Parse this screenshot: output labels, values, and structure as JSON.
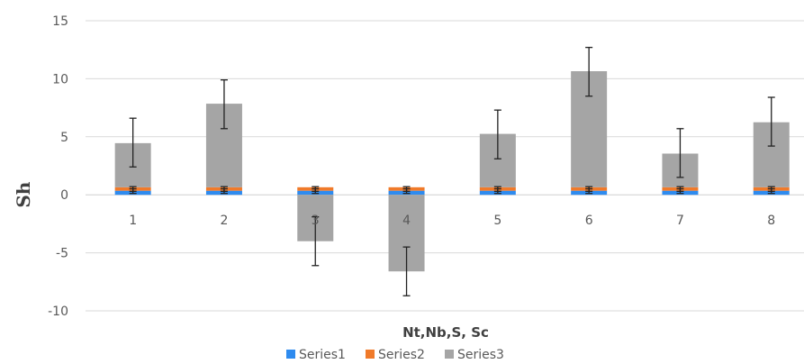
{
  "chart_data": {
    "type": "bar",
    "stacked": true,
    "title": "",
    "xlabel": "Nt,Nb,S, Sc",
    "ylabel": "Sh",
    "categories": [
      "1",
      "2",
      "3",
      "4",
      "5",
      "6",
      "7",
      "8"
    ],
    "ylim": [
      -10,
      15
    ],
    "yticks": [
      -10,
      -5,
      0,
      5,
      10,
      15
    ],
    "grid": true,
    "legend_position": "bottom",
    "series": [
      {
        "name": "Series1",
        "color": "#2E8BEF",
        "values": [
          0.35,
          0.35,
          0.35,
          0.35,
          0.35,
          0.35,
          0.35,
          0.35
        ]
      },
      {
        "name": "Series2",
        "color": "#F07A2A",
        "values": [
          0.3,
          0.3,
          0.3,
          0.3,
          0.3,
          0.3,
          0.3,
          0.3
        ]
      },
      {
        "name": "Series3",
        "color": "#A5A5A5",
        "values": [
          3.8,
          7.2,
          -4.0,
          -6.6,
          4.6,
          10.0,
          2.9,
          5.6
        ]
      }
    ],
    "error_bars": {
      "series3_center": [
        4.5,
        7.8,
        -4.0,
        -6.6,
        5.2,
        10.6,
        3.6,
        6.3
      ],
      "series3_error": 2.1,
      "small_series_error": 0.2
    }
  }
}
